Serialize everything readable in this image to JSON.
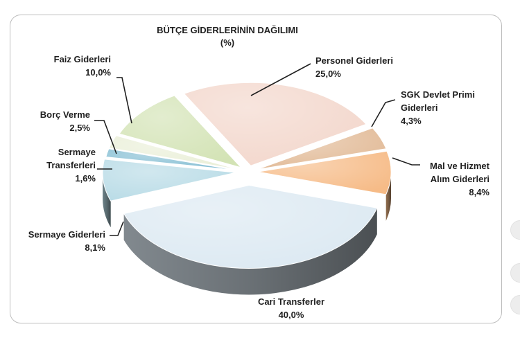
{
  "chart_data": {
    "type": "pie",
    "title": "BÜTÇE GİDERLERİNİN DAĞILIMI",
    "subtitle": "(%)",
    "slices": [
      {
        "label_lines": [
          "Personel Giderleri"
        ],
        "value_text": "25,0%",
        "value": 25.0,
        "color": "#f3d7cc"
      },
      {
        "label_lines": [
          "SGK Devlet Primi",
          "Giderleri"
        ],
        "value_text": "4,3%",
        "value": 4.3,
        "color": "#e2bb98"
      },
      {
        "label_lines": [
          "Mal ve Hizmet",
          "Alım  Giderleri"
        ],
        "value_text": "8,4%",
        "value": 8.4,
        "color": "#f6bb87"
      },
      {
        "label_lines": [
          "Cari Transferler"
        ],
        "value_text": "40,0%",
        "value": 40.0,
        "color": "#dce9f2"
      },
      {
        "label_lines": [
          "Sermaye Giderleri"
        ],
        "value_text": "8,1%",
        "value": 8.1,
        "color": "#b8dbe6"
      },
      {
        "label_lines": [
          "Sermaye",
          "Transferleri"
        ],
        "value_text": "1,6%",
        "value": 1.6,
        "color": "#86bfd4"
      },
      {
        "label_lines": [
          "Borç Verme"
        ],
        "value_text": "2,5%",
        "value": 2.5,
        "color": "#eaefd8"
      },
      {
        "label_lines": [
          "Faiz Giderleri"
        ],
        "value_text": "10,0%",
        "value": 10.0,
        "color": "#d3e3b5"
      }
    ]
  }
}
